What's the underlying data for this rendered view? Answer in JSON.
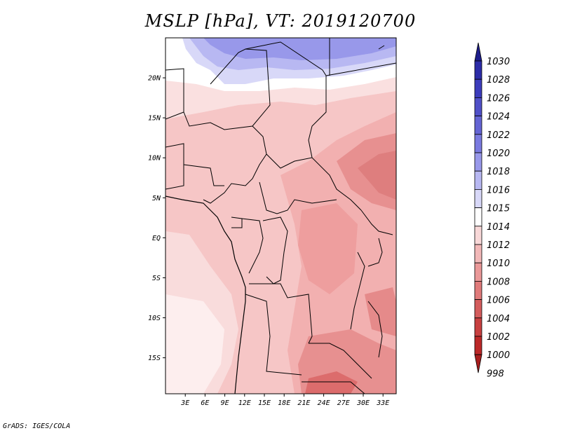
{
  "title": "MSLP [hPa], VT: 2019120700",
  "credit": "GrADS: IGES/COLA",
  "map": {
    "lat_labels": [
      "20N",
      "15N",
      "10N",
      "5N",
      "EQ",
      "5S",
      "10S",
      "15S"
    ],
    "lon_labels": [
      "3E",
      "6E",
      "9E",
      "12E",
      "15E",
      "18E",
      "21E",
      "24E",
      "27E",
      "30E",
      "33E"
    ],
    "lat_values": [
      20,
      15,
      10,
      5,
      0,
      -5,
      -10,
      -15
    ],
    "lon_values": [
      3,
      6,
      9,
      12,
      15,
      18,
      21,
      24,
      27,
      30,
      33
    ],
    "lat_range": [
      -19.5,
      25
    ],
    "lon_range": [
      0,
      35
    ]
  },
  "colorbar": {
    "labels": [
      "1030",
      "1028",
      "1026",
      "1024",
      "1022",
      "1020",
      "1018",
      "1016",
      "1015",
      "1014",
      "1012",
      "1010",
      "1008",
      "1006",
      "1004",
      "1002",
      "1000",
      "998"
    ],
    "colors": [
      "#1e1e8c",
      "#2c2ca8",
      "#3c3cbc",
      "#5050c8",
      "#6464d4",
      "#7a7ae0",
      "#9898ea",
      "#b8b8f2",
      "#d8d8f8",
      "#ffffff",
      "#f8d8d8",
      "#f2b8b8",
      "#ea9898",
      "#e07a7a",
      "#d45c5c",
      "#c84040",
      "#bc2828",
      "#a81e1e"
    ]
  }
}
